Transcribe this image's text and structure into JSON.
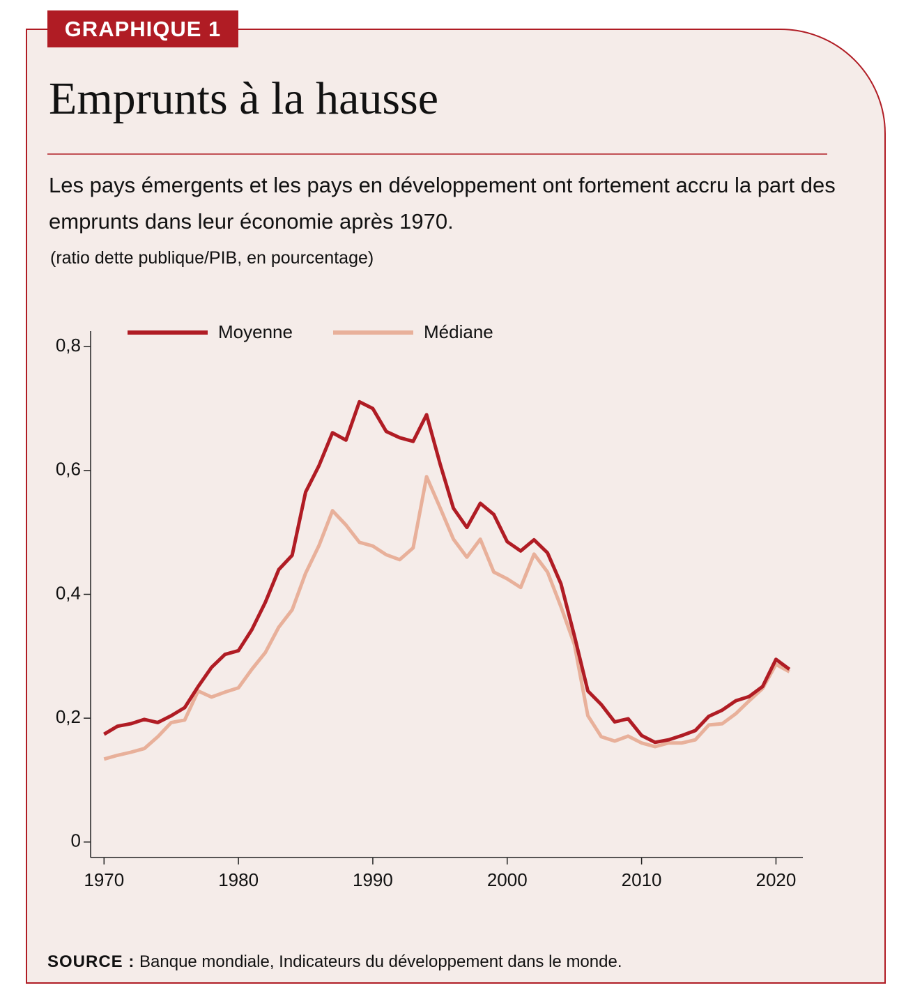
{
  "chart_data": {
    "type": "line",
    "badge": "GRAPHIQUE 1",
    "title": "Emprunts à la hausse",
    "subtitle": "Les pays émergents et les pays en développement ont fortement accru la part des emprunts dans leur économie après 1970.",
    "note": "(ratio dette publique/PIB, en pourcentage)",
    "source_label": "SOURCE :",
    "source": "Banque mondiale, Indicateurs du développement dans le monde.",
    "x": [
      1970,
      1971,
      1972,
      1973,
      1974,
      1975,
      1976,
      1977,
      1978,
      1979,
      1980,
      1981,
      1982,
      1983,
      1984,
      1985,
      1986,
      1987,
      1988,
      1989,
      1990,
      1991,
      1992,
      1993,
      1994,
      1995,
      1996,
      1997,
      1998,
      1999,
      2000,
      2001,
      2002,
      2003,
      2004,
      2005,
      2006,
      2007,
      2008,
      2009,
      2010,
      2011,
      2012,
      2013,
      2014,
      2015,
      2016,
      2017,
      2018,
      2019,
      2020,
      2021
    ],
    "series": [
      {
        "name": "Moyenne",
        "color": "#b01c24",
        "values": [
          0.174,
          0.187,
          0.191,
          0.198,
          0.193,
          0.204,
          0.217,
          0.251,
          0.282,
          0.303,
          0.309,
          0.343,
          0.387,
          0.44,
          0.463,
          0.565,
          0.608,
          0.661,
          0.649,
          0.711,
          0.7,
          0.663,
          0.653,
          0.647,
          0.69,
          0.611,
          0.539,
          0.508,
          0.547,
          0.529,
          0.485,
          0.47,
          0.488,
          0.467,
          0.417,
          0.333,
          0.244,
          0.222,
          0.194,
          0.199,
          0.172,
          0.161,
          0.165,
          0.172,
          0.18,
          0.203,
          0.213,
          0.228,
          0.235,
          0.251,
          0.295,
          0.279
        ]
      },
      {
        "name": "Médiane",
        "color": "#e8b09a",
        "values": [
          0.134,
          0.14,
          0.145,
          0.151,
          0.17,
          0.193,
          0.197,
          0.244,
          0.234,
          0.242,
          0.249,
          0.279,
          0.306,
          0.347,
          0.375,
          0.434,
          0.479,
          0.535,
          0.512,
          0.484,
          0.478,
          0.464,
          0.456,
          0.475,
          0.59,
          0.54,
          0.489,
          0.46,
          0.489,
          0.436,
          0.425,
          0.411,
          0.465,
          0.436,
          0.38,
          0.319,
          0.204,
          0.17,
          0.163,
          0.171,
          0.16,
          0.154,
          0.16,
          0.16,
          0.165,
          0.189,
          0.191,
          0.207,
          0.228,
          0.248,
          0.287,
          0.275
        ]
      }
    ],
    "xlim": [
      1969,
      2022
    ],
    "xticks": [
      1970,
      1980,
      1990,
      2000,
      2010,
      2020
    ],
    "ylim": [
      -0.025,
      0.825
    ],
    "yticks": [
      0,
      {
        "value": 0.2,
        "label": "0,2"
      },
      {
        "value": 0.4,
        "label": "0,4"
      },
      {
        "value": 0.6,
        "label": "0,6"
      },
      {
        "value": 0.8,
        "label": "0,8"
      }
    ]
  }
}
